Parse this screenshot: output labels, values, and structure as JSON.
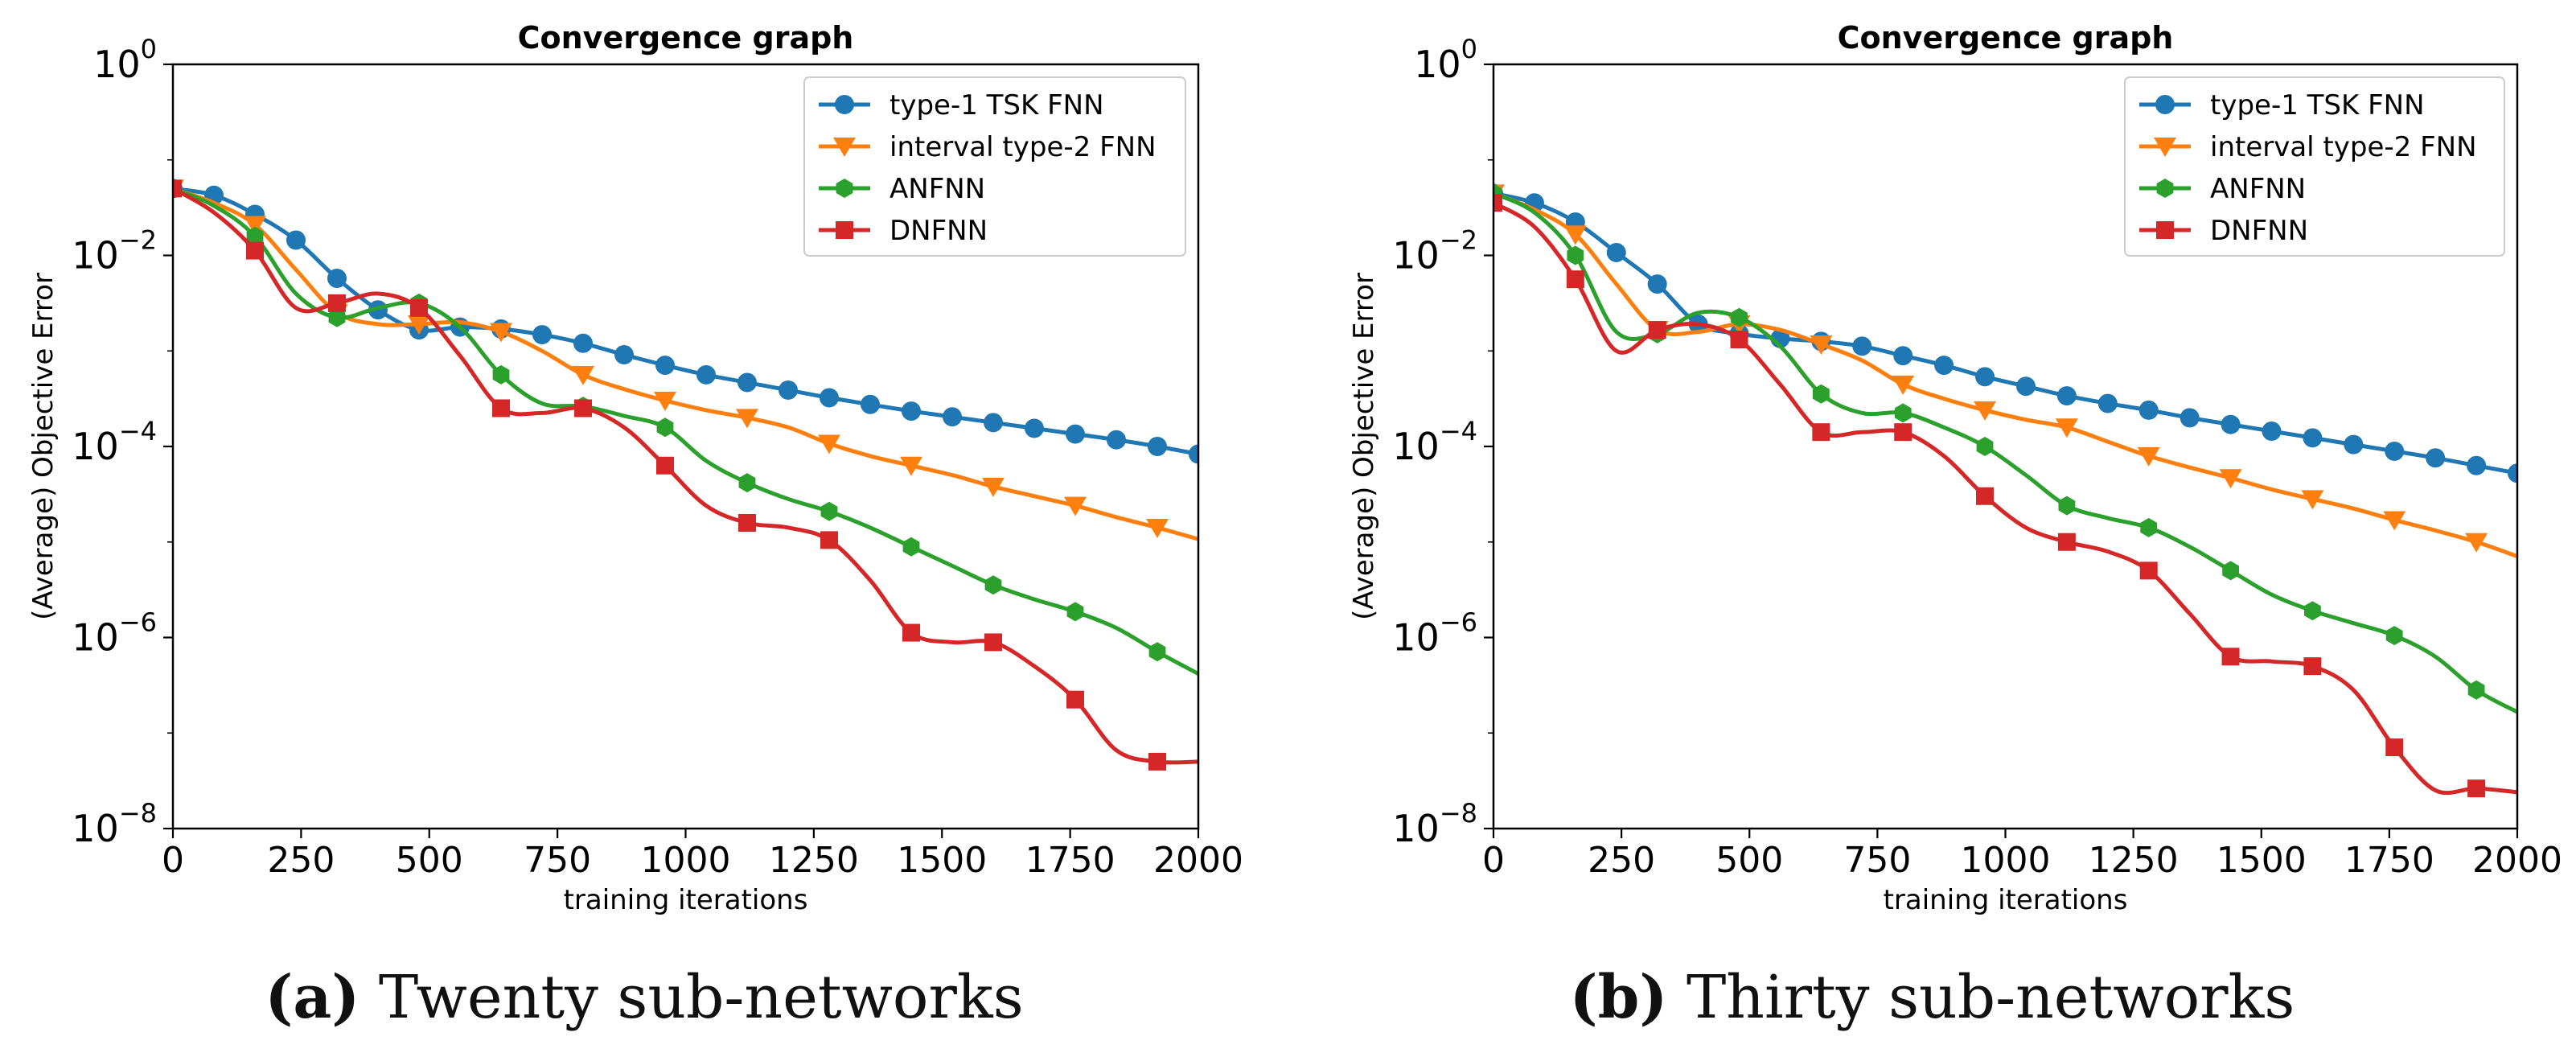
{
  "chart_data": [
    {
      "type": "line",
      "title": "Convergence graph",
      "xlabel": "training iterations",
      "ylabel": "(Average) Objective Error",
      "yscale": "log",
      "xlim": [
        0,
        2000
      ],
      "ylim_exponent": [
        -8,
        0
      ],
      "xticks": [
        "0",
        "250",
        "500",
        "750",
        "1000",
        "1250",
        "1500",
        "1750",
        "2000"
      ],
      "yticks": [
        {
          "base": "10",
          "exp": "0"
        },
        {
          "base": "10",
          "exp": "−2"
        },
        {
          "base": "10",
          "exp": "−4"
        },
        {
          "base": "10",
          "exp": "−6"
        },
        {
          "base": "10",
          "exp": "−8"
        }
      ],
      "legend_position": "top-right",
      "series": [
        {
          "name": "type-1 TSK FNN",
          "color": "#1f77b4",
          "marker": "circle",
          "marker_every": 80,
          "x": [
            0,
            80,
            160,
            240,
            320,
            400,
            480,
            560,
            640,
            720,
            800,
            880,
            960,
            1040,
            1120,
            1200,
            1280,
            1360,
            1440,
            1520,
            1600,
            1680,
            1760,
            1840,
            1920,
            2000
          ],
          "log10y": [
            -1.3,
            -1.37,
            -1.57,
            -1.84,
            -2.24,
            -2.57,
            -2.78,
            -2.75,
            -2.77,
            -2.83,
            -2.92,
            -3.04,
            -3.15,
            -3.25,
            -3.33,
            -3.41,
            -3.49,
            -3.56,
            -3.63,
            -3.69,
            -3.75,
            -3.81,
            -3.87,
            -3.93,
            -4.0,
            -4.08
          ]
        },
        {
          "name": "interval type-2 FNN",
          "color": "#ff7f0e",
          "marker": "triangle-down",
          "marker_every": 160,
          "x": [
            0,
            80,
            160,
            240,
            320,
            400,
            480,
            560,
            640,
            720,
            800,
            880,
            960,
            1040,
            1120,
            1200,
            1280,
            1360,
            1440,
            1520,
            1600,
            1680,
            1760,
            1840,
            1920,
            2000
          ],
          "log10y": [
            -1.3,
            -1.45,
            -1.68,
            -2.15,
            -2.6,
            -2.72,
            -2.72,
            -2.7,
            -2.8,
            -3.0,
            -3.25,
            -3.4,
            -3.52,
            -3.62,
            -3.7,
            -3.8,
            -3.97,
            -4.1,
            -4.2,
            -4.3,
            -4.42,
            -4.52,
            -4.62,
            -4.74,
            -4.85,
            -4.97
          ]
        },
        {
          "name": "ANFNN",
          "color": "#2ca02c",
          "marker": "hexagon",
          "marker_every": 160,
          "x": [
            0,
            80,
            160,
            240,
            320,
            400,
            480,
            560,
            640,
            720,
            800,
            880,
            960,
            1040,
            1120,
            1200,
            1280,
            1360,
            1440,
            1520,
            1600,
            1680,
            1760,
            1840,
            1920,
            2000
          ],
          "log10y": [
            -1.3,
            -1.48,
            -1.8,
            -2.4,
            -2.65,
            -2.55,
            -2.5,
            -2.75,
            -3.25,
            -3.55,
            -3.58,
            -3.68,
            -3.8,
            -4.15,
            -4.38,
            -4.55,
            -4.68,
            -4.85,
            -5.05,
            -5.25,
            -5.45,
            -5.6,
            -5.73,
            -5.9,
            -6.15,
            -6.38
          ]
        },
        {
          "name": "DNFNN",
          "color": "#d62728",
          "marker": "square",
          "marker_every": 160,
          "x": [
            0,
            80,
            160,
            240,
            320,
            400,
            480,
            560,
            640,
            720,
            800,
            880,
            960,
            1040,
            1120,
            1200,
            1280,
            1360,
            1440,
            1520,
            1600,
            1680,
            1760,
            1840,
            1920,
            2000
          ],
          "log10y": [
            -1.3,
            -1.55,
            -1.95,
            -2.55,
            -2.5,
            -2.4,
            -2.55,
            -3.05,
            -3.6,
            -3.65,
            -3.6,
            -3.8,
            -4.2,
            -4.62,
            -4.8,
            -4.85,
            -4.98,
            -5.4,
            -5.95,
            -6.05,
            -6.05,
            -6.3,
            -6.65,
            -7.18,
            -7.3,
            -7.3
          ]
        }
      ]
    },
    {
      "type": "line",
      "title": "Convergence graph",
      "xlabel": "training iterations",
      "ylabel": "(Average) Objective Error",
      "yscale": "log",
      "xlim": [
        0,
        2000
      ],
      "ylim_exponent": [
        -8,
        0
      ],
      "xticks": [
        "0",
        "250",
        "500",
        "750",
        "1000",
        "1250",
        "1500",
        "1750",
        "2000"
      ],
      "yticks": [
        {
          "base": "10",
          "exp": "0"
        },
        {
          "base": "10",
          "exp": "−2"
        },
        {
          "base": "10",
          "exp": "−4"
        },
        {
          "base": "10",
          "exp": "−6"
        },
        {
          "base": "10",
          "exp": "−8"
        }
      ],
      "legend_position": "top-right",
      "series": [
        {
          "name": "type-1 TSK FNN",
          "color": "#1f77b4",
          "marker": "circle",
          "marker_every": 80,
          "x": [
            0,
            80,
            160,
            240,
            320,
            400,
            480,
            560,
            640,
            720,
            800,
            880,
            960,
            1040,
            1120,
            1200,
            1280,
            1360,
            1440,
            1520,
            1600,
            1680,
            1760,
            1840,
            1920,
            2000
          ],
          "log10y": [
            -1.35,
            -1.45,
            -1.65,
            -1.97,
            -2.3,
            -2.72,
            -2.82,
            -2.87,
            -2.9,
            -2.95,
            -3.05,
            -3.15,
            -3.27,
            -3.37,
            -3.47,
            -3.55,
            -3.62,
            -3.7,
            -3.77,
            -3.84,
            -3.91,
            -3.98,
            -4.05,
            -4.12,
            -4.2,
            -4.28
          ]
        },
        {
          "name": "interval type-2 FNN",
          "color": "#ff7f0e",
          "marker": "triangle-down",
          "marker_every": 160,
          "x": [
            0,
            80,
            160,
            240,
            320,
            400,
            480,
            560,
            640,
            720,
            800,
            880,
            960,
            1040,
            1120,
            1200,
            1280,
            1360,
            1440,
            1520,
            1600,
            1680,
            1760,
            1840,
            1920,
            2000
          ],
          "log10y": [
            -1.35,
            -1.52,
            -1.78,
            -2.3,
            -2.78,
            -2.8,
            -2.72,
            -2.78,
            -2.93,
            -3.1,
            -3.35,
            -3.5,
            -3.62,
            -3.72,
            -3.8,
            -3.95,
            -4.1,
            -4.22,
            -4.33,
            -4.45,
            -4.55,
            -4.65,
            -4.77,
            -4.88,
            -5.0,
            -5.15
          ]
        },
        {
          "name": "ANFNN",
          "color": "#2ca02c",
          "marker": "hexagon",
          "marker_every": 160,
          "x": [
            0,
            80,
            160,
            240,
            320,
            400,
            480,
            560,
            640,
            720,
            800,
            880,
            960,
            1040,
            1120,
            1200,
            1280,
            1360,
            1440,
            1520,
            1600,
            1680,
            1760,
            1840,
            1920,
            2000
          ],
          "log10y": [
            -1.35,
            -1.55,
            -2.0,
            -2.8,
            -2.82,
            -2.6,
            -2.65,
            -2.95,
            -3.45,
            -3.65,
            -3.65,
            -3.8,
            -4.0,
            -4.3,
            -4.62,
            -4.75,
            -4.85,
            -5.05,
            -5.3,
            -5.55,
            -5.72,
            -5.85,
            -5.98,
            -6.2,
            -6.55,
            -6.78
          ]
        },
        {
          "name": "DNFNN",
          "color": "#d62728",
          "marker": "square",
          "marker_every": 160,
          "x": [
            0,
            80,
            160,
            240,
            320,
            400,
            480,
            560,
            640,
            720,
            800,
            880,
            960,
            1040,
            1120,
            1200,
            1280,
            1360,
            1440,
            1520,
            1600,
            1680,
            1760,
            1840,
            1920,
            2000
          ],
          "log10y": [
            -1.45,
            -1.7,
            -2.25,
            -3.0,
            -2.78,
            -2.72,
            -2.88,
            -3.35,
            -3.85,
            -3.85,
            -3.85,
            -4.1,
            -4.52,
            -4.85,
            -5.0,
            -5.1,
            -5.3,
            -5.75,
            -6.2,
            -6.25,
            -6.3,
            -6.55,
            -7.15,
            -7.6,
            -7.58,
            -7.62
          ]
        }
      ]
    }
  ],
  "captions": [
    {
      "label": "(a)",
      "text": " Twenty sub-networks"
    },
    {
      "label": "(b)",
      "text": " Thirty sub-networks"
    }
  ]
}
